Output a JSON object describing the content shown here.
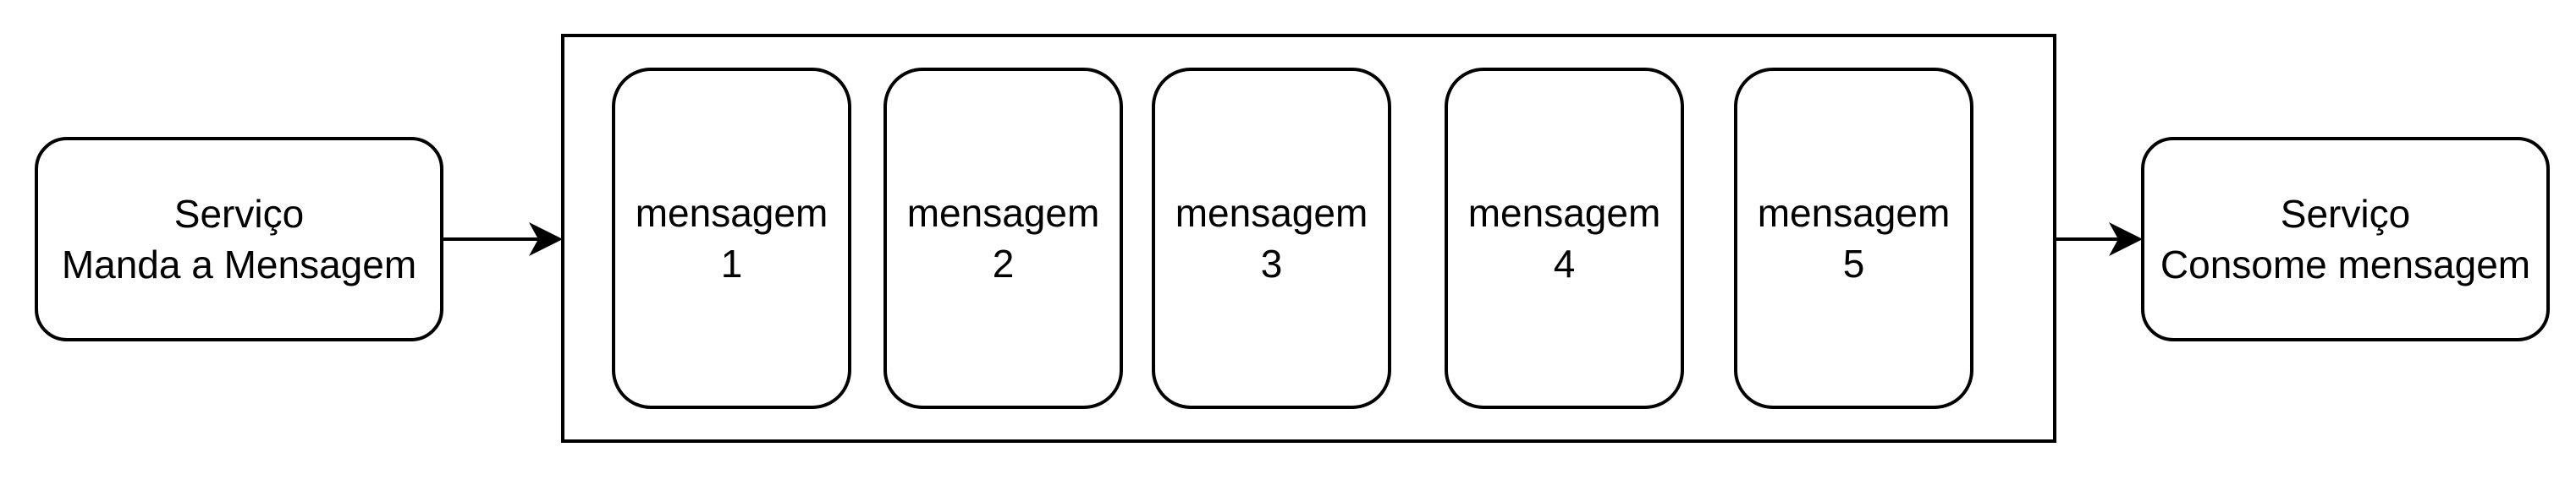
{
  "producer": {
    "line1": "Serviço",
    "line2": "Manda a Mensagem"
  },
  "consumer": {
    "line1": "Serviço",
    "line2": "Consome mensagem"
  },
  "queue": {
    "messages": [
      {
        "line1": "mensagem",
        "line2": "1"
      },
      {
        "line1": "mensagem",
        "line2": "2"
      },
      {
        "line1": "mensagem",
        "line2": "3"
      },
      {
        "line1": "mensagem",
        "line2": "4"
      },
      {
        "line1": "mensagem",
        "line2": "5"
      }
    ]
  },
  "colors": {
    "stroke": "#000000",
    "fill": "#ffffff"
  }
}
